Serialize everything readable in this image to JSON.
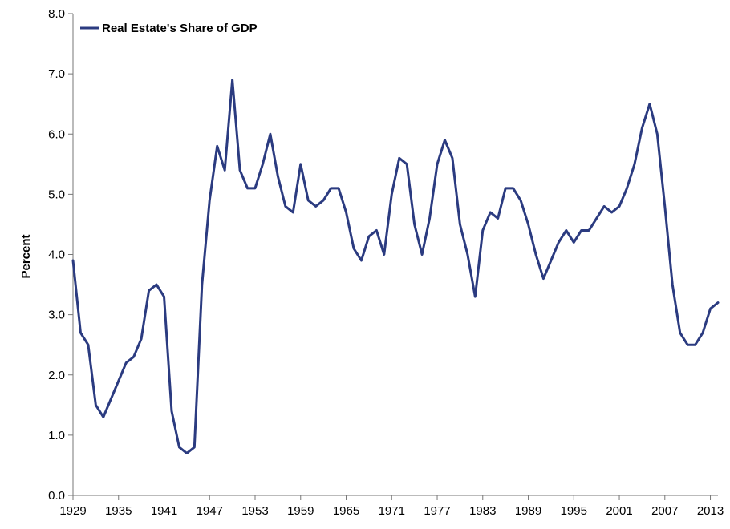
{
  "chart_data": {
    "type": "line",
    "ylabel": "Percent",
    "ylim": [
      0,
      8
    ],
    "yticks": [
      "0.0",
      "1.0",
      "2.0",
      "3.0",
      "4.0",
      "5.0",
      "6.0",
      "7.0",
      "8.0"
    ],
    "xlim": [
      1929,
      2014
    ],
    "xticks": [
      "1929",
      "1935",
      "1941",
      "1947",
      "1953",
      "1959",
      "1965",
      "1971",
      "1977",
      "1983",
      "1989",
      "1995",
      "2001",
      "2007",
      "2013"
    ],
    "grid": false,
    "legend_position": "top-left",
    "series": [
      {
        "name": "Real Estate's Share of GDP",
        "color": "#2b3b80",
        "x": [
          1929,
          1930,
          1931,
          1932,
          1933,
          1934,
          1935,
          1936,
          1937,
          1938,
          1939,
          1940,
          1941,
          1942,
          1943,
          1944,
          1945,
          1946,
          1947,
          1948,
          1949,
          1950,
          1951,
          1952,
          1953,
          1954,
          1955,
          1956,
          1957,
          1958,
          1959,
          1960,
          1961,
          1962,
          1963,
          1964,
          1965,
          1966,
          1967,
          1968,
          1969,
          1970,
          1971,
          1972,
          1973,
          1974,
          1975,
          1976,
          1977,
          1978,
          1979,
          1980,
          1981,
          1982,
          1983,
          1984,
          1985,
          1986,
          1987,
          1988,
          1989,
          1990,
          1991,
          1992,
          1993,
          1994,
          1995,
          1996,
          1997,
          1998,
          1999,
          2000,
          2001,
          2002,
          2003,
          2004,
          2005,
          2006,
          2007,
          2008,
          2009,
          2010,
          2011,
          2012,
          2013,
          2014
        ],
        "values": [
          3.9,
          2.7,
          2.5,
          1.5,
          1.3,
          1.6,
          1.9,
          2.2,
          2.3,
          2.6,
          3.4,
          3.5,
          3.3,
          1.4,
          0.8,
          0.7,
          0.8,
          3.5,
          4.9,
          5.8,
          5.4,
          6.9,
          5.4,
          5.1,
          5.1,
          5.5,
          6.0,
          5.3,
          4.8,
          4.7,
          5.5,
          4.9,
          4.8,
          4.9,
          5.1,
          5.1,
          4.7,
          4.1,
          3.9,
          4.3,
          4.4,
          4.0,
          5.0,
          5.6,
          5.5,
          4.5,
          4.0,
          4.6,
          5.5,
          5.9,
          5.6,
          4.5,
          4.0,
          3.3,
          4.4,
          4.7,
          4.6,
          5.1,
          5.1,
          4.9,
          4.5,
          4.0,
          3.6,
          3.9,
          4.2,
          4.4,
          4.2,
          4.4,
          4.4,
          4.6,
          4.8,
          4.7,
          4.8,
          5.1,
          5.5,
          6.1,
          6.5,
          6.0,
          4.8,
          3.5,
          2.7,
          2.5,
          2.5,
          2.7,
          3.1,
          3.2
        ]
      }
    ]
  }
}
